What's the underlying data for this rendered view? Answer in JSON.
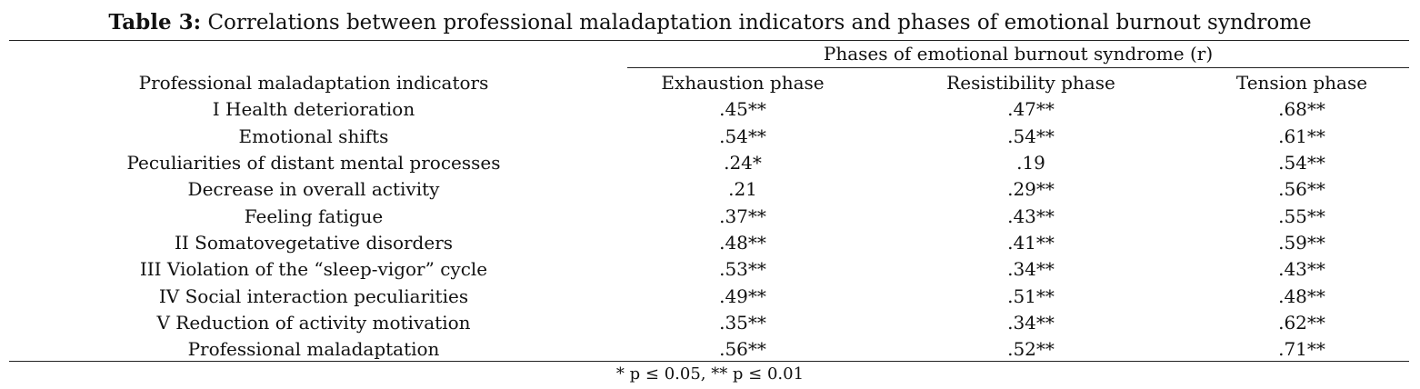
{
  "title": {
    "label": "Table 3:",
    "text": "Correlations between professional maladaptation indicators and phases of emotional burnout syndrome"
  },
  "group_header": "Phases of emotional burnout syndrome (r)",
  "columns": [
    "Professional maladaptation indicators",
    "Exhaustion phase",
    "Resistibility phase",
    "Tension phase"
  ],
  "rows": [
    [
      "I Health deterioration",
      ".45**",
      ".47**",
      ".68**"
    ],
    [
      "Emotional shifts",
      ".54**",
      ".54**",
      ".61**"
    ],
    [
      "Peculiarities of distant mental processes",
      ".24*",
      ".19",
      ".54**"
    ],
    [
      "Decrease in overall activity",
      ".21",
      ".29**",
      ".56**"
    ],
    [
      "Feeling fatigue",
      ".37**",
      ".43**",
      ".55**"
    ],
    [
      "II Somatovegetative disorders",
      ".48**",
      ".41**",
      ".59**"
    ],
    [
      "III Violation of the “sleep-vigor” cycle",
      ".53**",
      ".34**",
      ".43**"
    ],
    [
      "IV Social interaction peculiarities",
      ".49**",
      ".51**",
      ".48**"
    ],
    [
      "V Reduction of activity motivation",
      ".35**",
      ".34**",
      ".62**"
    ],
    [
      "Professional maladaptation",
      ".56**",
      ".52**",
      ".71**"
    ]
  ],
  "footnote": "* p ≤ 0.05, ** p ≤ 0.01"
}
